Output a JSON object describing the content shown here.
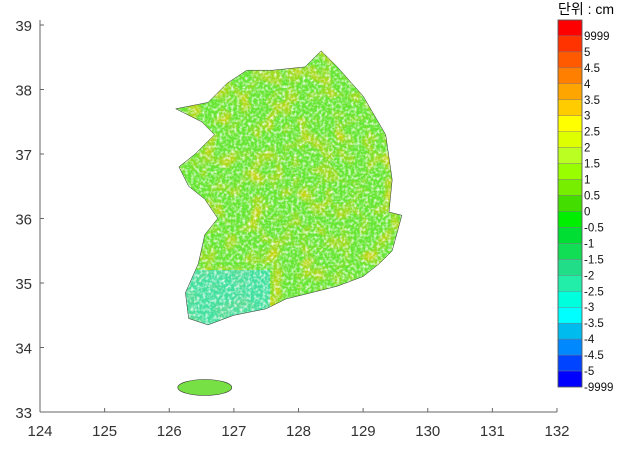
{
  "map": {
    "x_ticks": [
      "124",
      "125",
      "126",
      "127",
      "128",
      "129",
      "130",
      "131",
      "132"
    ],
    "y_ticks": [
      "33",
      "34",
      "35",
      "36",
      "37",
      "38",
      "39"
    ],
    "xlim": [
      124,
      132
    ],
    "ylim": [
      33,
      39
    ]
  },
  "colorbar": {
    "unit_label": "단위 : cm",
    "labels": [
      "9999",
      "5",
      "4.5",
      "4",
      "3.5",
      "3",
      "2.5",
      "2",
      "1.5",
      "1",
      "0.5",
      "0",
      "-0.5",
      "-1",
      "-1.5",
      "-2",
      "-2.5",
      "-3",
      "-3.5",
      "-4",
      "-4.5",
      "-5",
      "-9999"
    ],
    "colors": [
      "#ff0000",
      "#ff3300",
      "#ff5a00",
      "#ff7f00",
      "#ffa500",
      "#ffcc00",
      "#ffff00",
      "#ddff00",
      "#bbff22",
      "#99ff00",
      "#77ee00",
      "#44dd00",
      "#00ee00",
      "#00dd33",
      "#11dd55",
      "#22dd88",
      "#22eeaa",
      "#00ffdd",
      "#00ffff",
      "#00bbee",
      "#0088ff",
      "#0044ff",
      "#0000ff"
    ]
  }
}
